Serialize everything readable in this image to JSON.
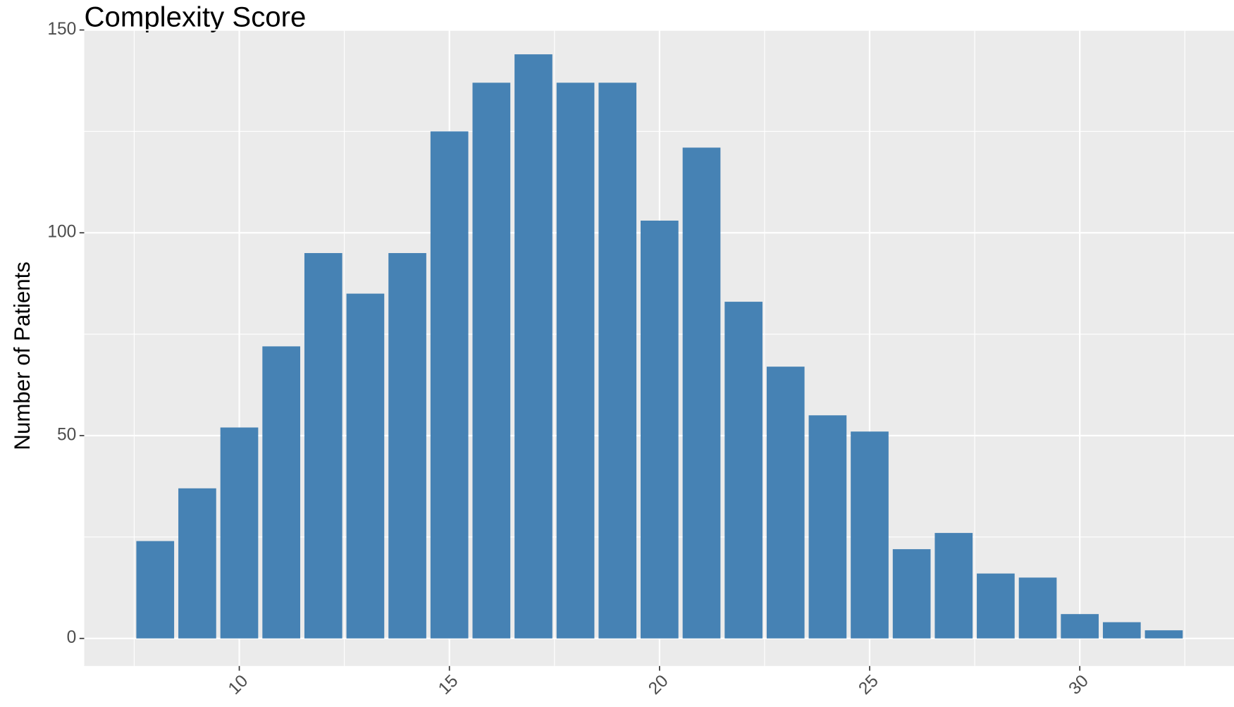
{
  "chart_data": {
    "type": "bar",
    "title": "Complexity Score",
    "y_label": "Number of Patients",
    "x": [
      8,
      9,
      10,
      11,
      12,
      13,
      14,
      15,
      16,
      17,
      18,
      19,
      20,
      21,
      22,
      23,
      24,
      25,
      26,
      27,
      28,
      29,
      30,
      31,
      32
    ],
    "values": [
      24,
      37,
      52,
      72,
      95,
      85,
      95,
      125,
      137,
      144,
      137,
      137,
      103,
      121,
      83,
      67,
      55,
      51,
      22,
      26,
      16,
      15,
      6,
      4,
      2
    ],
    "color": "#4682b4",
    "xlim": [
      6.31,
      33.67
    ],
    "xticks": [
      10,
      15,
      20,
      25,
      30
    ],
    "ylim": [
      -6.8,
      150
    ],
    "yticks": [
      0,
      50,
      100,
      150
    ],
    "grid": true
  }
}
